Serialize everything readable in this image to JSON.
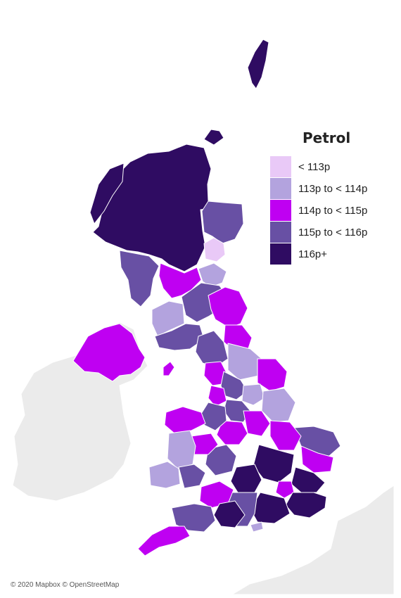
{
  "legend": {
    "title": "Petrol",
    "items": [
      {
        "label": "< 113p",
        "color": "#e9c9f7"
      },
      {
        "label": "113p to < 114p",
        "color": "#b3a3de"
      },
      {
        "label": "114p to < 115p",
        "color": "#bf00f2"
      },
      {
        "label": "115p to < 116p",
        "color": "#6850a4"
      },
      {
        "label": "116p+",
        "color": "#2f0c62"
      }
    ]
  },
  "colors": {
    "land_background": "#ebebeb",
    "sea": "#ffffff",
    "borders": "#ffffff"
  },
  "attribution": "© 2020 Mapbox © OpenStreetMap"
}
